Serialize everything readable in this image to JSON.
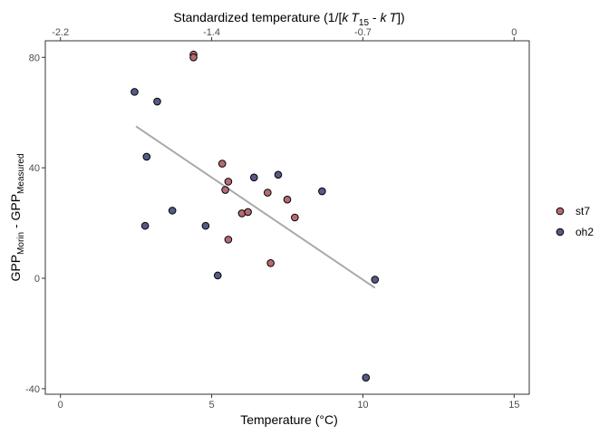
{
  "chart_data": {
    "type": "scatter",
    "xlabel": "Temperature (°C)",
    "ylabel_main": "GPP",
    "ylabel_sub1": "Morin",
    "ylabel_mid": " - GPP",
    "ylabel_sub2": "Measured",
    "top_axis_label": "Standardized temperature (1/[kT15 - kT])",
    "top_axis_parts": {
      "pre": "Standardized temperature (1/[",
      "k1": "k",
      "T1": "T",
      "sub15": "15",
      "mid": " - ",
      "k2": "k",
      "T2": "T",
      "post": "])"
    },
    "xlim": [
      -0.5,
      15.5
    ],
    "ylim": [
      -42,
      86
    ],
    "x_ticks": [
      0,
      5,
      10,
      15
    ],
    "x_tick_labels": [
      "0",
      "5",
      "10",
      "15"
    ],
    "y_ticks": [
      -40,
      0,
      40,
      80
    ],
    "y_tick_labels": [
      "-40",
      "0",
      "40",
      "80"
    ],
    "top_ticks": [
      {
        "label": "-2.2",
        "x": 0.0
      },
      {
        "label": "-1.4",
        "x": 5.0
      },
      {
        "label": "-0.7",
        "x": 10.0
      },
      {
        "label": "0",
        "x": 15.0
      }
    ],
    "grid": false,
    "legend_position": "right",
    "series": [
      {
        "name": "st7",
        "color": "#b66a72",
        "points": [
          [
            4.4,
            81
          ],
          [
            4.4,
            80
          ],
          [
            5.35,
            41.5
          ],
          [
            5.45,
            32
          ],
          [
            5.55,
            35
          ],
          [
            5.55,
            14
          ],
          [
            6.0,
            23.5
          ],
          [
            6.2,
            24
          ],
          [
            6.85,
            31
          ],
          [
            6.95,
            5.5
          ],
          [
            7.5,
            28.5
          ],
          [
            7.75,
            22
          ]
        ]
      },
      {
        "name": "oh2",
        "color": "#565a87",
        "points": [
          [
            2.45,
            67.5
          ],
          [
            3.2,
            64
          ],
          [
            2.85,
            44
          ],
          [
            2.8,
            19
          ],
          [
            3.7,
            24.5
          ],
          [
            4.8,
            19
          ],
          [
            5.2,
            1
          ],
          [
            6.4,
            36.5
          ],
          [
            7.2,
            37.5
          ],
          [
            8.65,
            31.5
          ],
          [
            10.4,
            -0.5
          ],
          [
            10.1,
            -36
          ]
        ]
      }
    ],
    "trend_line": {
      "color": "#a9a9a9",
      "x": [
        2.5,
        10.4
      ],
      "y": [
        55,
        -3.5
      ]
    }
  }
}
